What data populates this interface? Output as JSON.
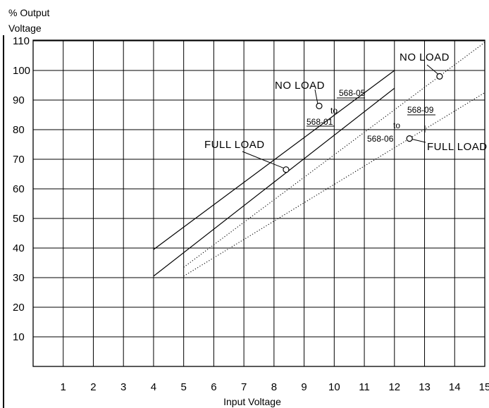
{
  "chart_data": {
    "type": "line",
    "ylabel_line1": "% Output",
    "ylabel_line2": "Voltage",
    "xlabel": "Input Voltage",
    "xlim": [
      0,
      15
    ],
    "ylim": [
      0,
      110
    ],
    "x_ticks": [
      1,
      2,
      3,
      4,
      5,
      6,
      7,
      8,
      9,
      10,
      11,
      12,
      13,
      14,
      15
    ],
    "y_ticks": [
      10,
      20,
      30,
      40,
      50,
      60,
      70,
      80,
      90,
      100,
      110
    ],
    "grid": true,
    "series": [
      {
        "group": "568-01 to 568-05",
        "condition": "NO LOAD",
        "style": "solid",
        "points": [
          [
            4,
            39.5
          ],
          [
            12,
            100
          ]
        ]
      },
      {
        "group": "568-01 to 568-05",
        "condition": "FULL LOAD",
        "style": "solid",
        "points": [
          [
            4,
            30.5
          ],
          [
            12,
            94
          ]
        ]
      },
      {
        "group": "568-06 to 568-09",
        "condition": "NO LOAD",
        "style": "dotted",
        "points": [
          [
            5,
            33.5
          ],
          [
            15,
            109.5
          ]
        ]
      },
      {
        "group": "568-06 to 568-09",
        "condition": "FULL LOAD",
        "style": "dotted",
        "points": [
          [
            5,
            30.5
          ],
          [
            15,
            92.5
          ]
        ]
      }
    ],
    "markers": [
      {
        "x": 9.5,
        "y": 88
      },
      {
        "x": 8.4,
        "y": 66.5
      },
      {
        "x": 13.5,
        "y": 98
      },
      {
        "x": 12.5,
        "y": 77
      }
    ],
    "annotations": {
      "no_load_left": "NO LOAD",
      "full_load_left": "FULL LOAD",
      "no_load_right": "NO LOAD",
      "full_load_right": "FULL LOAD",
      "range_a_top": "568-05",
      "range_a_to": "to",
      "range_a_bottom": "568-01",
      "range_b_top": "568-09",
      "range_b_to": "to",
      "range_b_bottom": "568-06"
    }
  }
}
